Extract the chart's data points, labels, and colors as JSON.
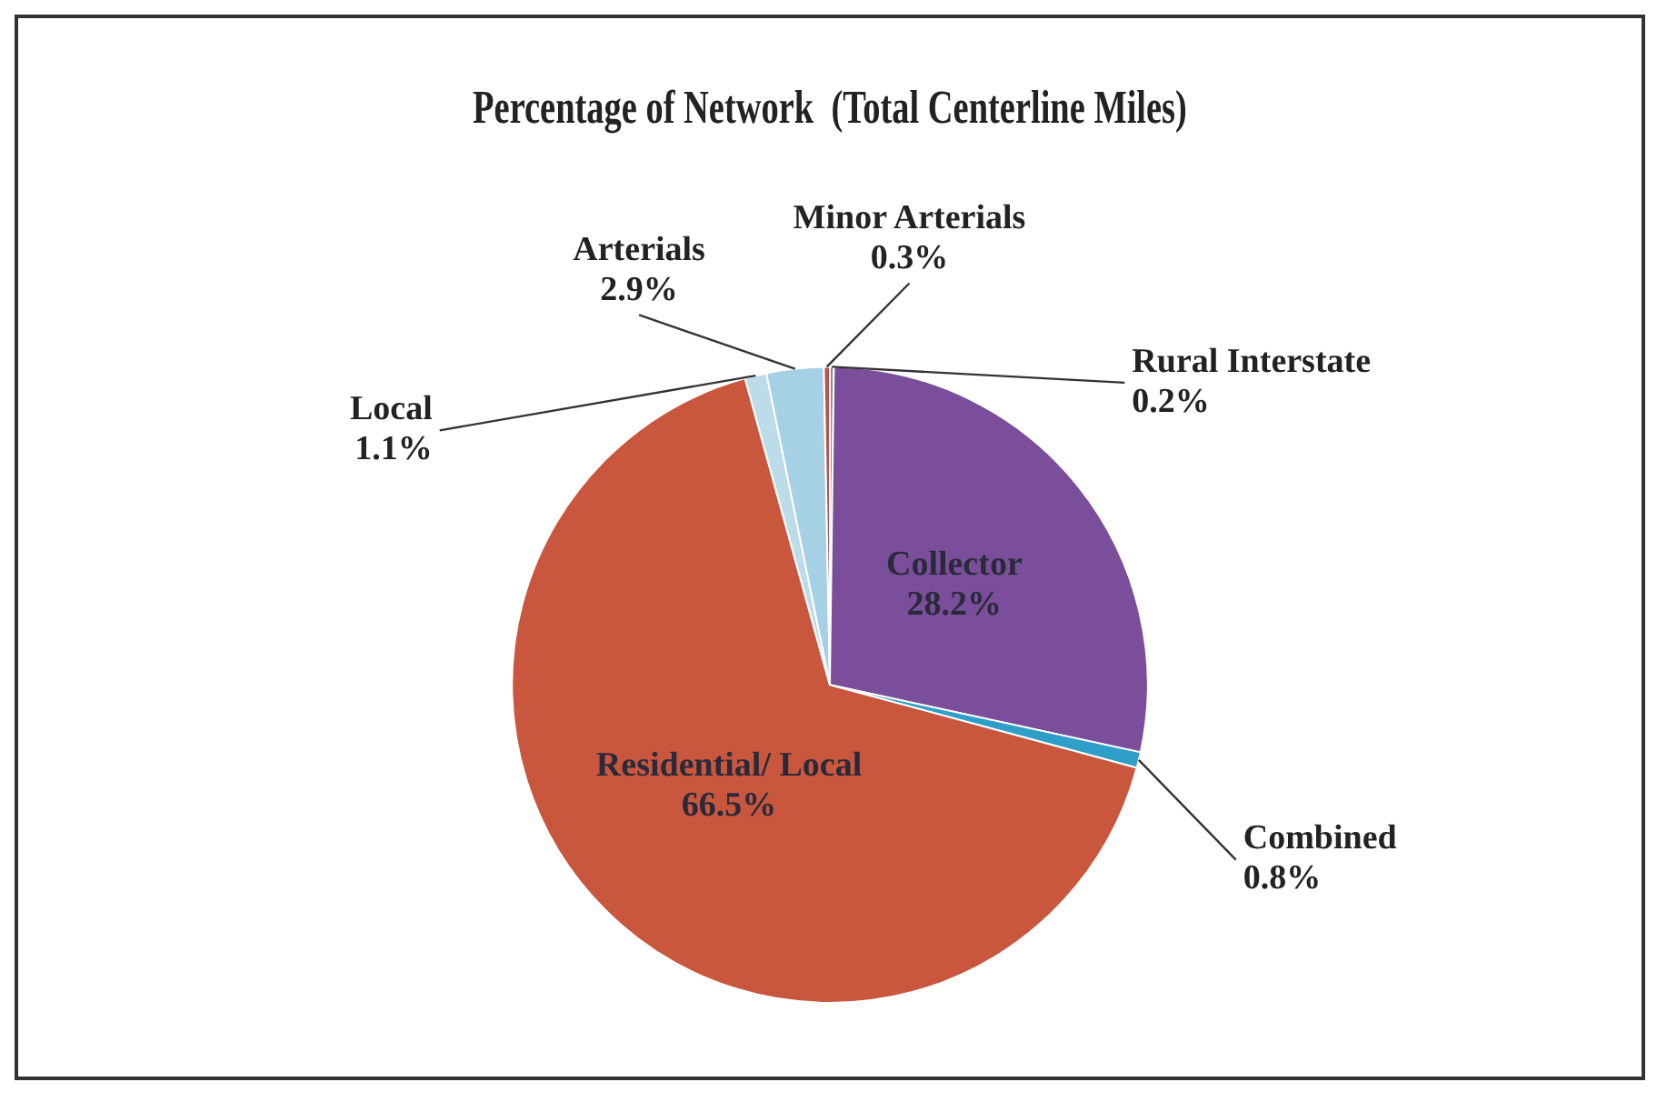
{
  "chart_data": {
    "type": "pie",
    "title": "Percentage of Network  (Total Centerline Miles)",
    "categories": [
      "Rural Interstate",
      "Collector",
      "Combined",
      "Residential/ Local",
      "Local",
      "Arterials",
      "Minor Arterials"
    ],
    "values": [
      0.2,
      28.2,
      0.8,
      66.5,
      1.1,
      2.9,
      0.3
    ],
    "colors": [
      "#8c8c8c",
      "#7a4e9a",
      "#2f9ec8",
      "#c9573e",
      "#bcdcea",
      "#a6d0e4",
      "#c0504d"
    ],
    "value_labels": [
      "0.2%",
      "28.2%",
      "0.8%",
      "66.5%",
      "1.1%",
      "2.9%",
      "0.3%"
    ],
    "legend": false
  }
}
